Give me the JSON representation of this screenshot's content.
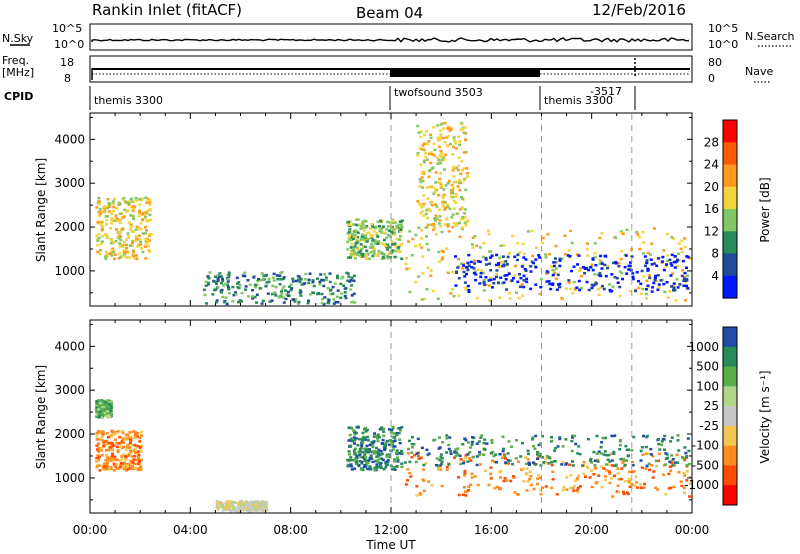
{
  "header": {
    "station": "Rankin Inlet (fitACF)",
    "beam": "Beam 04",
    "date": "12/Feb/2016"
  },
  "top_panels": {
    "nsky_label": "N.Sky",
    "nsky_ticks": [
      "10^5",
      "10^0"
    ],
    "nsearch_label": "N.Search",
    "nsearch_ticks": [
      "10^5",
      "10^0"
    ],
    "freq_label_1": "Freq.",
    "freq_label_2": "[MHz]",
    "freq_ticks": [
      "18",
      "8"
    ],
    "nave_label": "Nave",
    "nave_ticks": [
      "80",
      "0"
    ],
    "cpid_label": "CPID",
    "cpid_segments": [
      {
        "label": "themis 3300",
        "start_h": 0
      },
      {
        "label": "twofsound 3503",
        "start_h": 12
      },
      {
        "label": "themis 3300",
        "start_h": 18
      },
      {
        "label": "-3517",
        "start_h": 21.6
      }
    ]
  },
  "chart_data": [
    {
      "type": "heatmap",
      "name": "power",
      "xlabel": "",
      "ylabel": "Slant Range [km]",
      "colorbar_label": "Power [dB]",
      "colorbar_ticks": [
        "28",
        "24",
        "20",
        "16",
        "12",
        "8",
        "4"
      ],
      "colorbar_colors": [
        "#ff0000",
        "#ff5a00",
        "#ff9a1e",
        "#f2d43c",
        "#82c864",
        "#2a8a5a",
        "#1e4c9a",
        "#0018ff"
      ],
      "xlim": [
        0,
        24
      ],
      "ylim": [
        200,
        4600
      ],
      "yticks": [
        1000,
        2000,
        3000,
        4000
      ],
      "regions": [
        {
          "x": [
            0.2,
            2.4
          ],
          "y": [
            1300,
            2700
          ],
          "level": 3
        },
        {
          "x": [
            10.2,
            12.4
          ],
          "y": [
            1300,
            2200
          ],
          "level": 4
        },
        {
          "x": [
            4.5,
            10.5
          ],
          "y": [
            250,
            1000
          ],
          "level": 5
        },
        {
          "x": [
            12.5,
            24
          ],
          "y": [
            350,
            2000
          ],
          "level": 3
        },
        {
          "x": [
            14.5,
            24
          ],
          "y": [
            550,
            1400
          ],
          "level": 7
        },
        {
          "x": [
            13.0,
            15.0
          ],
          "y": [
            2000,
            4400
          ],
          "level": 3
        }
      ]
    },
    {
      "type": "heatmap",
      "name": "velocity",
      "xlabel": "Time UT",
      "ylabel": "Slant Range [km]",
      "colorbar_label": "Velocity [m s⁻¹]",
      "colorbar_ticks": [
        "1000",
        "500",
        "100",
        "25",
        "-25",
        "-100",
        "-500",
        "-1000"
      ],
      "colorbar_colors": [
        "#1e4ca8",
        "#2a8a5a",
        "#5aae4a",
        "#b0d68a",
        "#c8c8c8",
        "#f2c850",
        "#ff8c1e",
        "#ff4a00",
        "#ff0000"
      ],
      "xlim": [
        0,
        24
      ],
      "ylim": [
        200,
        4600
      ],
      "xticks": [
        "00:00",
        "04:00",
        "08:00",
        "12:00",
        "16:00",
        "20:00",
        "00:00"
      ],
      "yticks": [
        1000,
        2000,
        3000,
        4000
      ],
      "regions": [
        {
          "x": [
            0.2,
            2.0
          ],
          "y": [
            1200,
            2100
          ],
          "level": 6
        },
        {
          "x": [
            0.2,
            0.8
          ],
          "y": [
            2400,
            2800
          ],
          "level": 2
        },
        {
          "x": [
            10.2,
            12.4
          ],
          "y": [
            1200,
            2200
          ],
          "level": 1
        },
        {
          "x": [
            12.5,
            24
          ],
          "y": [
            600,
            1600
          ],
          "level": 6
        },
        {
          "x": [
            12.5,
            24
          ],
          "y": [
            1300,
            2000
          ],
          "level": 1
        },
        {
          "x": [
            5.0,
            7.0
          ],
          "y": [
            200,
            500
          ],
          "level": 4
        }
      ]
    }
  ]
}
